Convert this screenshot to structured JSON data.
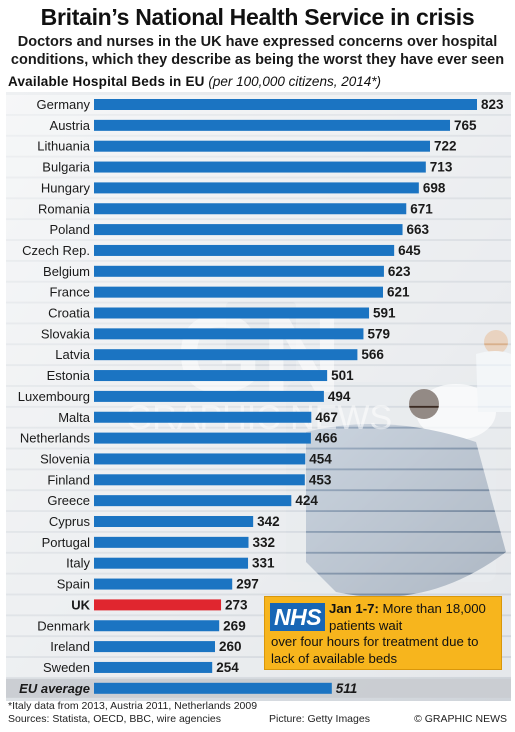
{
  "header": {
    "title": "Britain’s National Health Service in crisis",
    "subtitle": "Doctors and nurses in the UK have expressed concerns over hospital conditions, which they describe as being the worst they have ever seen"
  },
  "chart_data": {
    "type": "bar",
    "orientation": "horizontal",
    "title": "Available Hospital Beds in EU",
    "subtitle": "(per 100,000 citizens, 2014*)",
    "categories": [
      "Germany",
      "Austria",
      "Lithuania",
      "Bulgaria",
      "Hungary",
      "Romania",
      "Poland",
      "Czech Rep.",
      "Belgium",
      "France",
      "Croatia",
      "Slovakia",
      "Latvia",
      "Estonia",
      "Luxembourg",
      "Malta",
      "Netherlands",
      "Slovenia",
      "Finland",
      "Greece",
      "Cyprus",
      "Portugal",
      "Italy",
      "Spain",
      "UK",
      "Denmark",
      "Ireland",
      "Sweden",
      "EU average"
    ],
    "values": [
      823,
      765,
      722,
      713,
      698,
      671,
      663,
      645,
      623,
      621,
      591,
      579,
      566,
      501,
      494,
      467,
      466,
      454,
      453,
      424,
      342,
      332,
      331,
      297,
      273,
      269,
      260,
      254,
      511
    ],
    "highlight": "UK",
    "bar_color": "#1b74c2",
    "highlight_color": "#e0262f",
    "xlim": [
      0,
      823
    ],
    "grid": false
  },
  "callout": {
    "logo": "NHS",
    "date": "Jan 1-7:",
    "line1": " More than 18,000 patients wait",
    "line2": "over four hours for treatment due to lack of available beds",
    "logo_color": "#1866b5",
    "box_color": "#f7b51d"
  },
  "watermark": {
    "mark": "GN",
    "text": "GRAPHIC NEWS"
  },
  "footer": {
    "footnote": "*Italy data from 2013, Austria 2011, Netherlands 2009",
    "sources": "Sources: Statista, OECD, BBC, wire agencies",
    "picture": "Picture: Getty Images",
    "copyright": "© GRAPHIC NEWS"
  }
}
